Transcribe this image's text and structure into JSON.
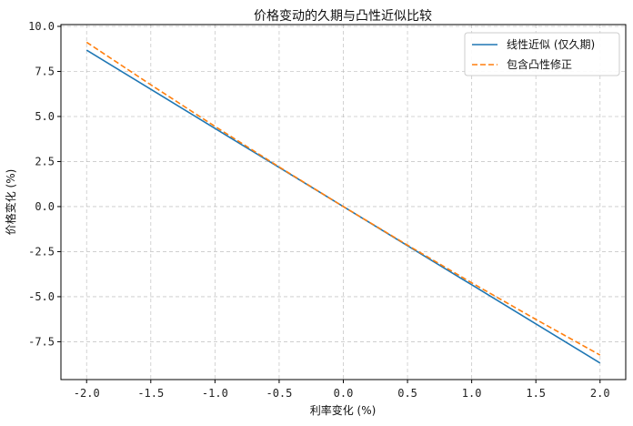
{
  "chart_data": {
    "type": "line",
    "title": "价格变动的久期与凸性近似比较",
    "xlabel": "利率变化 (%)",
    "ylabel": "价格变化 (%)",
    "xlim": [
      -2.2,
      2.2
    ],
    "ylim": [
      -9.6,
      10.1
    ],
    "xticks": [
      -2.0,
      -1.5,
      -1.0,
      -0.5,
      0.0,
      0.5,
      1.0,
      1.5,
      2.0
    ],
    "xtick_labels": [
      "-2.0",
      "-1.5",
      "-1.0",
      "-0.5",
      "0.0",
      "0.5",
      "1.0",
      "1.5",
      "2.0"
    ],
    "yticks": [
      -7.5,
      -5.0,
      -2.5,
      0.0,
      2.5,
      5.0,
      7.5,
      10.0
    ],
    "ytick_labels": [
      "-7.5",
      "-5.0",
      "-2.5",
      "0.0",
      "2.5",
      "5.0",
      "7.5",
      "10.0"
    ],
    "grid": true,
    "legend_position": "top-right",
    "series": [
      {
        "name": "线性近似 (仅久期)",
        "color": "#1f77b4",
        "style": "solid",
        "x": [
          -2.0,
          -1.5,
          -1.0,
          -0.5,
          0.0,
          0.5,
          1.0,
          1.5,
          2.0
        ],
        "values": [
          8.68,
          6.51,
          4.34,
          2.17,
          0.0,
          -2.17,
          -4.34,
          -6.51,
          -8.68
        ]
      },
      {
        "name": "包含凸性修正",
        "color": "#ff7f0e",
        "style": "dashed",
        "x": [
          -2.0,
          -1.5,
          -1.0,
          -0.5,
          0.0,
          0.5,
          1.0,
          1.5,
          2.0
        ],
        "values": [
          9.12,
          6.76,
          4.45,
          2.2,
          0.0,
          -2.14,
          -4.23,
          -6.26,
          -8.24
        ]
      }
    ]
  }
}
